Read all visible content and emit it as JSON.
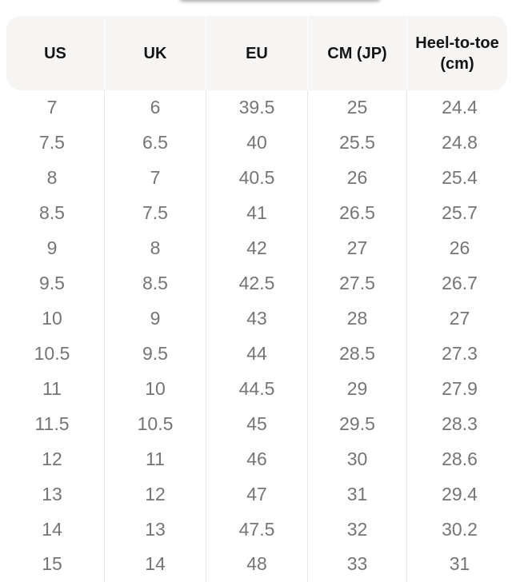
{
  "table": {
    "columns": [
      "US",
      "UK",
      "EU",
      "CM (JP)",
      "Heel-to-toe (cm)"
    ],
    "rows": [
      [
        "7",
        "6",
        "39.5",
        "25",
        "24.4"
      ],
      [
        "7.5",
        "6.5",
        "40",
        "25.5",
        "24.8"
      ],
      [
        "8",
        "7",
        "40.5",
        "26",
        "25.4"
      ],
      [
        "8.5",
        "7.5",
        "41",
        "26.5",
        "25.7"
      ],
      [
        "9",
        "8",
        "42",
        "27",
        "26"
      ],
      [
        "9.5",
        "8.5",
        "42.5",
        "27.5",
        "26.7"
      ],
      [
        "10",
        "9",
        "43",
        "28",
        "27"
      ],
      [
        "10.5",
        "9.5",
        "44",
        "28.5",
        "27.3"
      ],
      [
        "11",
        "10",
        "44.5",
        "29",
        "27.9"
      ],
      [
        "11.5",
        "10.5",
        "45",
        "29.5",
        "28.3"
      ],
      [
        "12",
        "11",
        "46",
        "30",
        "28.6"
      ],
      [
        "13",
        "12",
        "47",
        "31",
        "29.4"
      ],
      [
        "14",
        "13",
        "47.5",
        "32",
        "30.2"
      ],
      [
        "15",
        "14",
        "48",
        "33",
        "31"
      ]
    ]
  },
  "colors": {
    "header_bg": "#f6f5f3",
    "header_text": "#141414",
    "body_text": "#757575",
    "divider": "#e7e7e7"
  }
}
